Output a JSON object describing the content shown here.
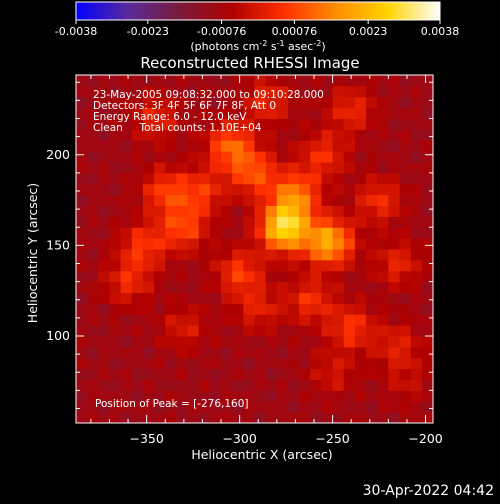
{
  "colorbar": {
    "ticks": [
      "-0.0038",
      "-0.0023",
      "-0.00076",
      "0.00076",
      "0.0023",
      "0.0038"
    ],
    "tick_values": [
      -0.0038,
      -0.0023,
      -0.00076,
      0.00076,
      0.0023,
      0.0038
    ],
    "range": [
      -0.0038,
      0.0038
    ],
    "unit_parts": [
      "(photons cm",
      "-2",
      " s",
      "-1",
      " asec",
      "-2",
      ")"
    ],
    "colors": [
      "#0000ff",
      "#5a2a9a",
      "#7a1a3a",
      "#b00000",
      "#ff3000",
      "#ff8c00",
      "#ffd400",
      "#ffffff"
    ]
  },
  "chart_data": {
    "type": "heatmap",
    "title": "Reconstructed RHESSI Image",
    "xlabel": "Heliocentric X (arcsec)",
    "ylabel": "Heliocentric Y (arcsec)",
    "xlim": [
      -388,
      -196
    ],
    "ylim": [
      52,
      244
    ],
    "xticks": [
      -350,
      -300,
      -250,
      -200
    ],
    "yticks": [
      100,
      150,
      200
    ],
    "info_lines": [
      "23-May-2005 09:08:32.000 to 09:10:28.000",
      "Detectors: 3F 4F 5F 6F 7F 8F, Att 0",
      "Energy Range: 6.0 - 12.0 keV",
      "Clean     Total counts: 1.10E+04"
    ],
    "peak_text": "Position of Peak = [-276,160]",
    "peak_position": [
      -276,
      160
    ],
    "sources": [
      {
        "x": -276,
        "y": 160,
        "value": 0.0038
      },
      {
        "x": -252,
        "y": 152,
        "value": 0.003
      },
      {
        "x": -270,
        "y": 178,
        "value": 0.0022
      },
      {
        "x": -305,
        "y": 205,
        "value": 0.002
      },
      {
        "x": -292,
        "y": 190,
        "value": 0.0017
      },
      {
        "x": -340,
        "y": 180,
        "value": 0.0015
      },
      {
        "x": -330,
        "y": 160,
        "value": 0.0016
      },
      {
        "x": -352,
        "y": 150,
        "value": 0.0014
      },
      {
        "x": -360,
        "y": 130,
        "value": 0.0012
      },
      {
        "x": -300,
        "y": 135,
        "value": 0.0015
      },
      {
        "x": -262,
        "y": 120,
        "value": 0.0013
      },
      {
        "x": -240,
        "y": 105,
        "value": 0.0014
      },
      {
        "x": -225,
        "y": 175,
        "value": 0.0013
      },
      {
        "x": -240,
        "y": 225,
        "value": 0.0012
      },
      {
        "x": -215,
        "y": 140,
        "value": 0.0011
      },
      {
        "x": -215,
        "y": 95,
        "value": 0.001
      },
      {
        "x": -330,
        "y": 105,
        "value": 0.0009
      },
      {
        "x": -345,
        "y": 220,
        "value": 0.0011
      },
      {
        "x": -285,
        "y": 230,
        "value": 0.0012
      },
      {
        "x": -255,
        "y": 200,
        "value": 0.0013
      },
      {
        "x": -320,
        "y": 180,
        "value": 0.0013
      },
      {
        "x": -290,
        "y": 115,
        "value": 0.001
      },
      {
        "x": -250,
        "y": 80,
        "value": 0.0008
      },
      {
        "x": -210,
        "y": 75,
        "value": 0.0006
      }
    ]
  },
  "footer": {
    "timestamp": "30-Apr-2022 04:42"
  }
}
